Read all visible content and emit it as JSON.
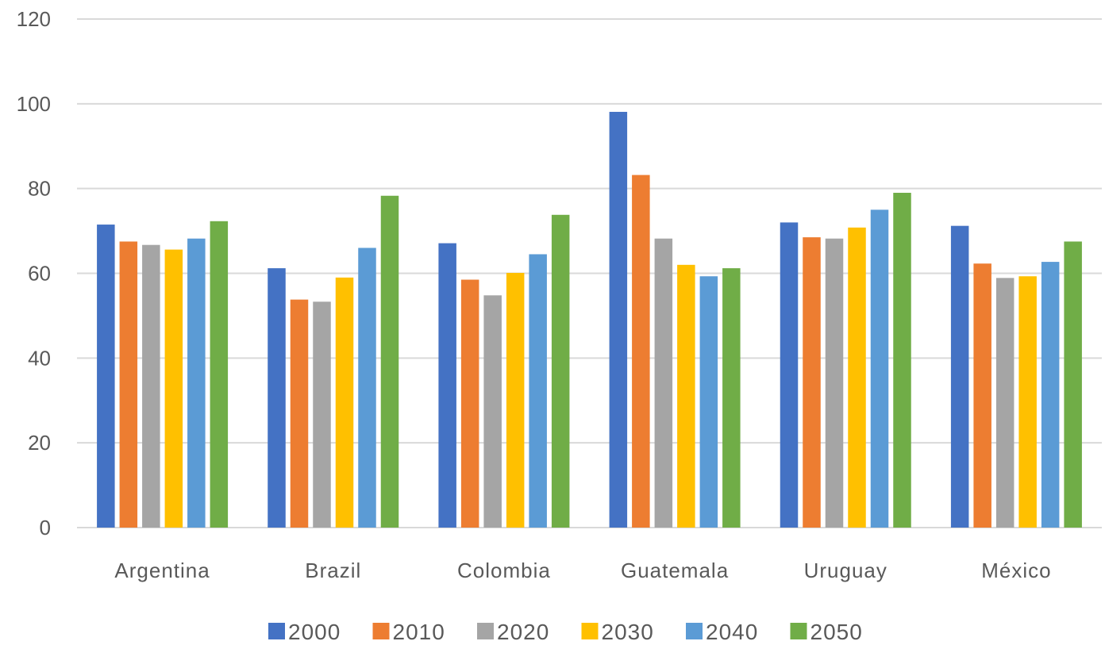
{
  "chart_data": {
    "type": "bar",
    "categories": [
      "Argentina",
      "Brazil",
      "Colombia",
      "Guatemala",
      "Uruguay",
      "México"
    ],
    "series": [
      {
        "name": "2000",
        "color": "#4472C4",
        "values": [
          71.5,
          61.2,
          67.1,
          98.1,
          72.0,
          71.2
        ]
      },
      {
        "name": "2010",
        "color": "#ED7D31",
        "values": [
          67.5,
          53.8,
          58.5,
          83.2,
          68.5,
          62.3
        ]
      },
      {
        "name": "2020",
        "color": "#A5A5A5",
        "values": [
          66.7,
          53.3,
          54.8,
          68.2,
          68.2,
          58.9
        ]
      },
      {
        "name": "2030",
        "color": "#FFC000",
        "values": [
          65.6,
          59.0,
          60.1,
          62.0,
          70.8,
          59.3
        ]
      },
      {
        "name": "2040",
        "color": "#5B9BD5",
        "values": [
          68.2,
          66.0,
          64.5,
          59.3,
          75.0,
          62.7
        ]
      },
      {
        "name": "2050",
        "color": "#70AD47",
        "values": [
          72.3,
          78.3,
          73.8,
          61.2,
          79.0,
          67.5
        ]
      }
    ],
    "yticks": [
      "0",
      "20",
      "40",
      "60",
      "80",
      "100",
      "120"
    ],
    "ylim": [
      0,
      120
    ],
    "grid": true,
    "legend_position": "bottom",
    "title": "",
    "xlabel": "",
    "ylabel": ""
  }
}
